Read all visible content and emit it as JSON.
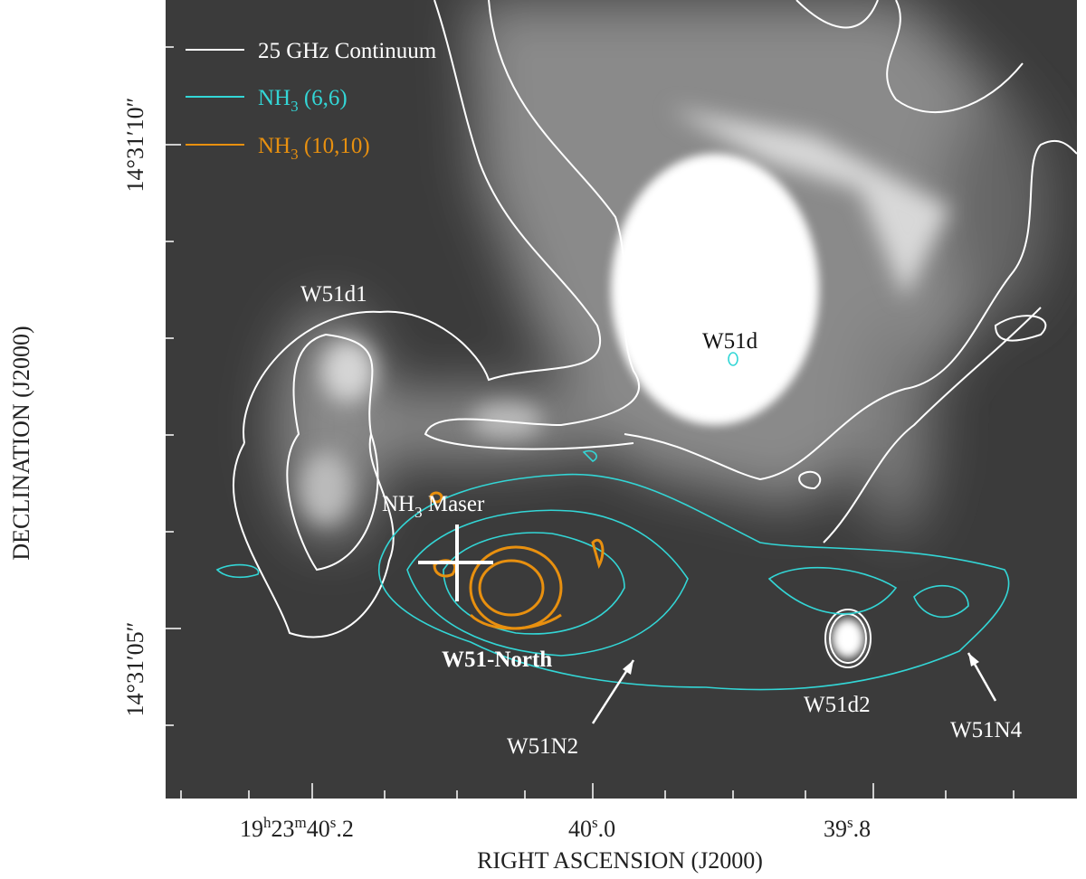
{
  "legend": [
    {
      "text": "25 GHz Continuum"
    },
    {
      "main": "NH",
      "sub": "3",
      "rest": " (6,6)"
    },
    {
      "main": "NH",
      "sub": "3",
      "rest": " (10,10)"
    }
  ],
  "labels": {
    "w51d1": "W51d1",
    "w51d": "W51d",
    "maser": {
      "main": "NH",
      "sub": "3",
      "rest": " Maser"
    },
    "w51north": "W51-North",
    "w51d2": "W51d2",
    "w51n2": "W51N2",
    "w51n4": "W51N4"
  },
  "y_axis": {
    "title": "DECLINATION (J2000)",
    "ticks": [
      "14°31′10″",
      "14°31′05″"
    ]
  },
  "x_axis": {
    "title": "RIGHT ASCENSION (J2000)",
    "ticks": [
      {
        "h": "19",
        "hu": "h",
        "m": "23",
        "mu": "m",
        "s": "40",
        "su": "s",
        "f": ".2"
      },
      {
        "s": "40",
        "su": "s",
        "f": ".0"
      },
      {
        "s": "39",
        "su": "s",
        "f": ".8"
      }
    ]
  }
}
